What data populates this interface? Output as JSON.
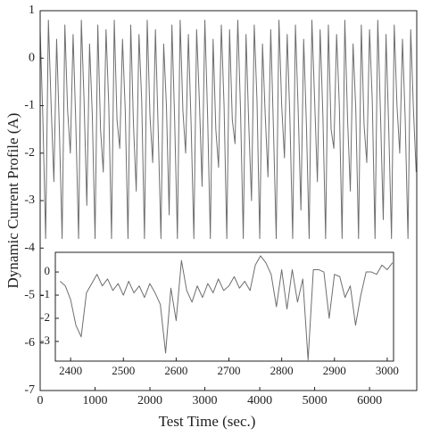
{
  "chart_data": [
    {
      "type": "line",
      "xlabel": "Test Time (sec.)",
      "ylabel": "Dynamic Current Profile (A)",
      "xlim": [
        0,
        6860
      ],
      "ylim": [
        -7,
        1
      ],
      "xticks": [
        0,
        1000,
        2000,
        3000,
        4000,
        5000,
        6000
      ],
      "yticks": [
        1,
        0,
        -1,
        -2,
        -3,
        -4,
        -5,
        -6,
        -7
      ],
      "x": [
        0,
        50,
        100,
        150,
        200,
        250,
        300,
        350,
        400,
        450,
        500,
        550,
        600,
        650,
        700,
        750,
        800,
        850,
        900,
        950,
        1000,
        1050,
        1100,
        1150,
        1200,
        1250,
        1300,
        1350,
        1400,
        1450,
        1500,
        1550,
        1600,
        1650,
        1700,
        1750,
        1800,
        1850,
        1900,
        1950,
        2000,
        2050,
        2100,
        2150,
        2200,
        2250,
        2300,
        2350,
        2400,
        2450,
        2500,
        2550,
        2600,
        2650,
        2700,
        2750,
        2800,
        2850,
        2900,
        2950,
        3000,
        3050,
        3100,
        3150,
        3200,
        3250,
        3300,
        3350,
        3400,
        3450,
        3500,
        3550,
        3600,
        3650,
        3700,
        3750,
        3800,
        3850,
        3900,
        3950,
        4000,
        4050,
        4100,
        4150,
        4200,
        4250,
        4300,
        4350,
        4400,
        4450,
        4500,
        4550,
        4600,
        4650,
        4700,
        4750,
        4800,
        4850,
        4900,
        4950,
        5000,
        5050,
        5100,
        5150,
        5200,
        5250,
        5300,
        5350,
        5400,
        5450,
        5500,
        5550,
        5600,
        5650,
        5700,
        5750,
        5800,
        5850,
        5900,
        5950,
        6000,
        6050,
        6100,
        6150,
        6200,
        6250,
        6300,
        6350,
        6400,
        6450,
        6500,
        6550,
        6600,
        6650,
        6700,
        6750,
        6800,
        6850
      ],
      "series": [
        {
          "color": "#6e6e6e",
          "values": [
            0.6,
            -1.3,
            -3.8,
            0.8,
            -1.0,
            -2.6,
            0.4,
            -1.5,
            -3.8,
            0.7,
            -1.1,
            -2.0,
            0.5,
            -1.4,
            -3.8,
            0.8,
            -0.9,
            -3.1,
            0.3,
            -1.2,
            -3.8,
            0.7,
            -1.5,
            -2.4,
            0.6,
            -1.0,
            -3.8,
            0.8,
            -1.3,
            -1.9,
            0.4,
            -1.1,
            -3.8,
            0.7,
            -1.4,
            -2.8,
            0.5,
            -0.9,
            -3.8,
            0.8,
            -1.2,
            -2.2,
            0.6,
            -1.5,
            -3.8,
            0.3,
            -1.0,
            -3.3,
            0.7,
            -1.3,
            -3.8,
            0.8,
            -1.1,
            -2.0,
            0.5,
            -1.4,
            -3.8,
            0.6,
            -0.9,
            -2.7,
            0.8,
            -1.2,
            -3.8,
            0.4,
            -1.5,
            -2.3,
            0.7,
            -1.0,
            -3.8,
            0.6,
            -1.3,
            -1.8,
            0.8,
            -1.1,
            -3.8,
            0.5,
            -1.4,
            -3.0,
            0.7,
            -0.9,
            -3.8,
            0.3,
            -1.2,
            -2.5,
            0.6,
            -1.5,
            -3.8,
            0.8,
            -1.0,
            -2.1,
            0.5,
            -1.3,
            -3.8,
            0.7,
            -1.1,
            -3.2,
            0.4,
            -1.4,
            -3.8,
            0.8,
            -0.9,
            -2.6,
            0.6,
            -1.2,
            -3.8,
            0.7,
            -1.5,
            -1.9,
            0.5,
            -1.0,
            -3.8,
            0.8,
            -1.3,
            -2.8,
            0.3,
            -1.1,
            -3.8,
            0.7,
            -1.4,
            -2.2,
            0.6,
            -0.9,
            -3.8,
            0.8,
            -1.2,
            -3.4,
            0.5,
            -1.5,
            -3.8,
            0.7,
            -1.0,
            -2.0,
            0.4,
            -1.3,
            -3.8,
            0.6,
            -1.1,
            -2.4
          ]
        }
      ]
    },
    {
      "type": "line",
      "xlim": [
        2371,
        3012
      ],
      "ylim": [
        -3.85,
        0.85
      ],
      "xticks": [
        2400,
        2500,
        2600,
        2700,
        2800,
        2900,
        3000
      ],
      "yticks": [
        0,
        -1,
        -2,
        -3
      ],
      "x": [
        2380,
        2390,
        2400,
        2410,
        2420,
        2430,
        2440,
        2450,
        2460,
        2470,
        2480,
        2490,
        2500,
        2510,
        2520,
        2530,
        2540,
        2550,
        2560,
        2570,
        2580,
        2590,
        2600,
        2610,
        2620,
        2630,
        2640,
        2650,
        2660,
        2670,
        2680,
        2690,
        2700,
        2710,
        2720,
        2730,
        2740,
        2750,
        2760,
        2770,
        2780,
        2790,
        2800,
        2810,
        2820,
        2830,
        2840,
        2850,
        2860,
        2870,
        2880,
        2890,
        2900,
        2910,
        2920,
        2930,
        2940,
        2950,
        2960,
        2970,
        2980,
        2990,
        3000,
        3010
      ],
      "series": [
        {
          "color": "#6e6e6e",
          "values": [
            -0.4,
            -0.6,
            -1.2,
            -2.3,
            -2.8,
            -0.9,
            -0.5,
            -0.1,
            -0.6,
            -0.3,
            -0.8,
            -0.5,
            -1.0,
            -0.4,
            -0.9,
            -0.6,
            -1.1,
            -0.5,
            -0.9,
            -1.4,
            -3.5,
            -0.7,
            -2.1,
            0.5,
            -0.8,
            -1.3,
            -0.6,
            -1.1,
            -0.5,
            -0.9,
            -0.3,
            -0.8,
            -0.6,
            -0.2,
            -0.7,
            -0.4,
            -0.8,
            0.3,
            0.7,
            0.4,
            -0.1,
            -1.5,
            0.1,
            -1.6,
            0.1,
            -1.3,
            -0.3,
            -3.8,
            0.1,
            0.1,
            0,
            -2.0,
            -0.1,
            -0.2,
            -1.1,
            -0.6,
            -2.3,
            -1.0,
            0,
            0,
            -0.1,
            0.3,
            0.1,
            0.4
          ]
        }
      ]
    }
  ]
}
